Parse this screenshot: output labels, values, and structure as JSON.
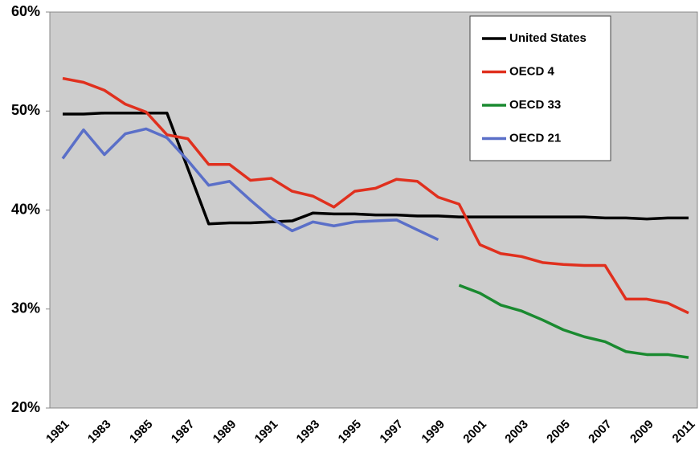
{
  "chart_data": {
    "type": "line",
    "categories": [
      "1981",
      null,
      "1983",
      null,
      "1985",
      null,
      "1987",
      null,
      "1989",
      null,
      "1991",
      null,
      "1993",
      null,
      "1995",
      null,
      "1997",
      null,
      "1999",
      null,
      "2001",
      null,
      "2003",
      null,
      "2005",
      null,
      "2007",
      null,
      "2009",
      null,
      "2011"
    ],
    "series": [
      {
        "name": "United States",
        "color": "#000000",
        "values": [
          49.7,
          49.7,
          49.8,
          49.8,
          49.8,
          49.8,
          44.2,
          38.6,
          38.7,
          38.7,
          38.8,
          38.9,
          39.7,
          39.6,
          39.6,
          39.5,
          39.5,
          39.4,
          39.4,
          39.3,
          39.3,
          39.3,
          39.3,
          39.3,
          39.3,
          39.3,
          39.2,
          39.2,
          39.1,
          39.2,
          39.2
        ]
      },
      {
        "name": "OECD 4",
        "color": "#e0301e",
        "values": [
          53.3,
          52.9,
          52.1,
          50.7,
          49.9,
          47.6,
          47.2,
          44.6,
          44.6,
          43.0,
          43.2,
          41.9,
          41.4,
          40.3,
          41.9,
          42.2,
          43.1,
          42.9,
          41.3,
          40.6,
          36.5,
          35.6,
          35.3,
          34.7,
          34.5,
          34.4,
          34.4,
          31.0,
          31.0,
          30.6,
          29.6
        ]
      },
      {
        "name": "OECD 33",
        "color": "#1a8a30",
        "values": [
          null,
          null,
          null,
          null,
          null,
          null,
          null,
          null,
          null,
          null,
          null,
          null,
          null,
          null,
          null,
          null,
          null,
          null,
          null,
          32.4,
          31.6,
          30.4,
          29.8,
          28.9,
          27.9,
          27.2,
          26.7,
          25.7,
          25.4,
          25.4,
          25.1
        ]
      },
      {
        "name": "OECD 21",
        "color": "#5a6fc8",
        "values": [
          45.2,
          48.1,
          45.6,
          47.7,
          48.2,
          47.3,
          45.0,
          42.5,
          42.9,
          41.0,
          39.2,
          37.9,
          38.8,
          38.4,
          38.8,
          38.9,
          39.0,
          38.0,
          37.0,
          null,
          null,
          null,
          null,
          null,
          null,
          null,
          null,
          null,
          null,
          null,
          null
        ]
      }
    ],
    "ylim": [
      20,
      60
    ],
    "yticks": [
      {
        "value": 20,
        "label": "20%"
      },
      {
        "value": 30,
        "label": "30%"
      },
      {
        "value": 40,
        "label": "40%"
      },
      {
        "value": 50,
        "label": "50%"
      },
      {
        "value": 60,
        "label": "60%"
      }
    ]
  }
}
